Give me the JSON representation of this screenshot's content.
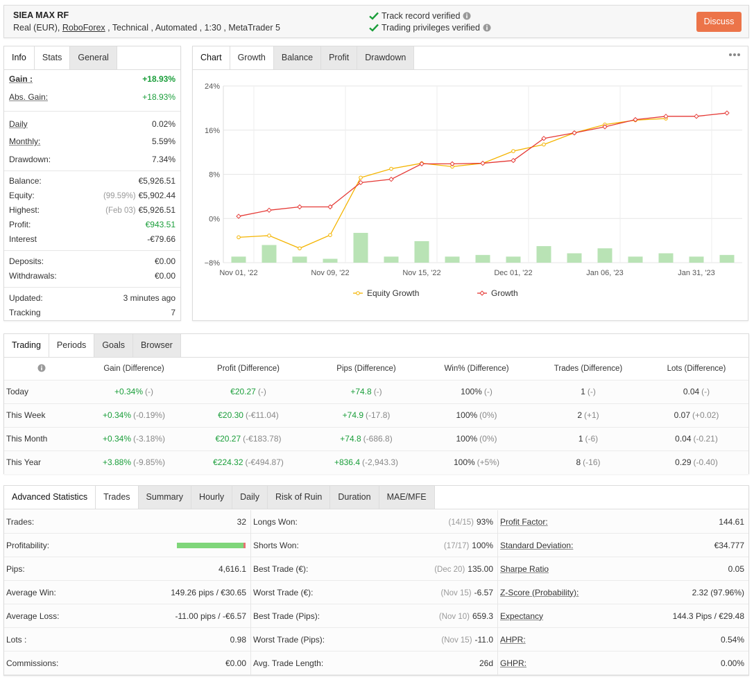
{
  "header": {
    "title": "SIEA MAX RF",
    "account_prefix": "Real (EUR), ",
    "broker": "RoboForex",
    "account_suffix": " , Technical , Automated , 1:30 , MetaTrader 5",
    "badges": [
      "Track record verified",
      "Trading privileges verified"
    ],
    "button": "Discuss"
  },
  "info_panel": {
    "tabs": [
      "Info",
      "Stats",
      "General"
    ],
    "active_tab": 1,
    "groups": [
      [
        {
          "label": "Gain :",
          "value": "+18.93%",
          "tone": "green",
          "strong": true,
          "underline": true
        },
        {
          "label": "Abs. Gain:",
          "value": "+18.93%",
          "tone": "green",
          "underline": true
        }
      ],
      [
        {
          "label": "Daily",
          "value": "0.02%",
          "underline": true
        },
        {
          "label": "Monthly:",
          "value": "5.59%",
          "underline": true
        },
        {
          "label": "Drawdown:",
          "value": "7.34%"
        }
      ],
      [
        {
          "label": "Balance:",
          "value": "€5,926.51"
        },
        {
          "label": "Equity:",
          "note": "(99.59%)",
          "value": "€5,902.44"
        },
        {
          "label": "Highest:",
          "note": "(Feb 03)",
          "value": "€5,926.51"
        },
        {
          "label": "Profit:",
          "value": "€943.51",
          "tone": "green"
        },
        {
          "label": "Interest",
          "value": "-€79.66"
        }
      ],
      [
        {
          "label": "Deposits:",
          "value": "€0.00"
        },
        {
          "label": "Withdrawals:",
          "value": "€0.00"
        }
      ],
      [
        {
          "label": "Updated:",
          "value": "3 minutes ago"
        },
        {
          "label": "Tracking",
          "value": "7"
        }
      ]
    ]
  },
  "chart_panel": {
    "tabs": [
      "Chart",
      "Growth",
      "Balance",
      "Profit",
      "Drawdown"
    ],
    "active_tab": 1
  },
  "chart_data": {
    "type": "line",
    "categories": [
      "Nov 01, '22",
      null,
      null,
      "Nov 09, '22",
      null,
      null,
      "Nov 15, '22",
      null,
      null,
      "Dec 01, '22",
      null,
      null,
      "Jan 06, '23",
      null,
      null,
      "Jan 31, '23",
      null
    ],
    "series": [
      {
        "name": "Equity Growth",
        "color": "#f4b400",
        "marker": "circle",
        "values": [
          -3.4,
          -3.1,
          -5.4,
          -3.0,
          7.4,
          9.0,
          10.0,
          9.4,
          10.0,
          12.2,
          13.4,
          15.5,
          17.0,
          17.8,
          18.1,
          null,
          null
        ]
      },
      {
        "name": "Growth",
        "color": "#e53935",
        "marker": "diamond",
        "values": [
          0.4,
          1.5,
          2.1,
          2.1,
          6.5,
          7.1,
          9.9,
          9.9,
          10.0,
          10.5,
          14.5,
          15.5,
          16.6,
          17.9,
          18.5,
          18.5,
          19.1
        ]
      }
    ],
    "bars": {
      "color": "#b9e3b5",
      "values": [
        -6.9,
        -4.8,
        -6.9,
        -7.3,
        -2.6,
        -6.9,
        -4.1,
        -6.9,
        -6.6,
        -6.9,
        -5.0,
        -6.3,
        -5.4,
        -6.9,
        -6.3,
        -6.9,
        -6.6
      ]
    },
    "ylim": [
      -8,
      24
    ],
    "yticks": [
      {
        "value": -8,
        "label": "−8%"
      },
      {
        "value": 0,
        "label": "0%"
      },
      {
        "value": 8,
        "label": "8%"
      },
      {
        "value": 16,
        "label": "16%"
      },
      {
        "value": 24,
        "label": "24%"
      }
    ],
    "grid": true,
    "legend": "bottom"
  },
  "trading": {
    "tabs": [
      "Trading",
      "Periods",
      "Goals",
      "Browser"
    ],
    "active_tab": 1,
    "columns": [
      "Gain (Difference)",
      "Profit (Difference)",
      "Pips (Difference)",
      "Win% (Difference)",
      "Trades (Difference)",
      "Lots (Difference)"
    ],
    "green_columns": [
      0,
      1,
      2
    ],
    "rows": [
      {
        "label": "Today",
        "cells": [
          {
            "value": "+0.34%",
            "diff": "(-)"
          },
          {
            "value": "€20.27",
            "diff": "(-)"
          },
          {
            "value": "+74.8",
            "diff": "(-)"
          },
          {
            "value": "100%",
            "diff": "(-)"
          },
          {
            "value": "1",
            "diff": "(-)"
          },
          {
            "value": "0.04",
            "diff": "(-)"
          }
        ]
      },
      {
        "label": "This Week",
        "cells": [
          {
            "value": "+0.34%",
            "diff": "(-0.19%)"
          },
          {
            "value": "€20.30",
            "diff": "(-€11.04)"
          },
          {
            "value": "+74.9",
            "diff": "(-17.8)"
          },
          {
            "value": "100%",
            "diff": "(0%)"
          },
          {
            "value": "2",
            "diff": "(+1)"
          },
          {
            "value": "0.07",
            "diff": "(+0.02)"
          }
        ]
      },
      {
        "label": "This Month",
        "cells": [
          {
            "value": "+0.34%",
            "diff": "(-3.18%)"
          },
          {
            "value": "€20.27",
            "diff": "(-€183.78)"
          },
          {
            "value": "+74.8",
            "diff": "(-686.8)"
          },
          {
            "value": "100%",
            "diff": "(0%)"
          },
          {
            "value": "1",
            "diff": "(-6)"
          },
          {
            "value": "0.04",
            "diff": "(-0.21)"
          }
        ]
      },
      {
        "label": "This Year",
        "cells": [
          {
            "value": "+3.88%",
            "diff": "(-9.85%)"
          },
          {
            "value": "€224.32",
            "diff": "(-€494.87)"
          },
          {
            "value": "+836.4",
            "diff": "(-2,943.3)"
          },
          {
            "value": "100%",
            "diff": "(+5%)"
          },
          {
            "value": "8",
            "diff": "(-16)"
          },
          {
            "value": "0.29",
            "diff": "(-0.40)"
          }
        ]
      }
    ]
  },
  "advanced": {
    "tabs": [
      "Advanced Statistics",
      "Trades",
      "Summary",
      "Hourly",
      "Daily",
      "Risk of Ruin",
      "Duration",
      "MAE/MFE"
    ],
    "active_tab": 1,
    "underline_columns": [
      2
    ],
    "columns": [
      [
        {
          "label": "Trades:",
          "value": "32"
        },
        {
          "label": "Profitability:",
          "bar": 97
        },
        {
          "label": "Pips:",
          "value": "4,616.1"
        },
        {
          "label": "Average Win:",
          "value": "149.26 pips / €30.65"
        },
        {
          "label": "Average Loss:",
          "value": "-11.00 pips / -€6.57"
        },
        {
          "label": "Lots :",
          "value": "0.98"
        },
        {
          "label": "Commissions:",
          "value": "€0.00"
        }
      ],
      [
        {
          "label": "Longs Won:",
          "note": "(14/15)",
          "value": "93%"
        },
        {
          "label": "Shorts Won:",
          "note": "(17/17)",
          "value": "100%"
        },
        {
          "label": "Best Trade (€):",
          "note": "(Dec 20)",
          "value": "135.00"
        },
        {
          "label": "Worst Trade (€):",
          "note": "(Nov 15)",
          "value": "-6.57"
        },
        {
          "label": "Best Trade (Pips):",
          "note": "(Nov 10)",
          "value": "659.3"
        },
        {
          "label": "Worst Trade (Pips):",
          "note": "(Nov 15)",
          "value": "-11.0"
        },
        {
          "label": "Avg. Trade Length:",
          "value": "26d"
        }
      ],
      [
        {
          "label": "Profit Factor:",
          "value": "144.61"
        },
        {
          "label": "Standard Deviation:",
          "value": "€34.777"
        },
        {
          "label": "Sharpe Ratio",
          "value": "0.05"
        },
        {
          "label": "Z-Score (Probability):",
          "value": "2.32 (97.96%)"
        },
        {
          "label": "Expectancy",
          "value": "144.3 Pips / €29.48"
        },
        {
          "label": "AHPR:",
          "value": "0.54%"
        },
        {
          "label": "GHPR:",
          "value": "0.00%"
        }
      ]
    ]
  }
}
